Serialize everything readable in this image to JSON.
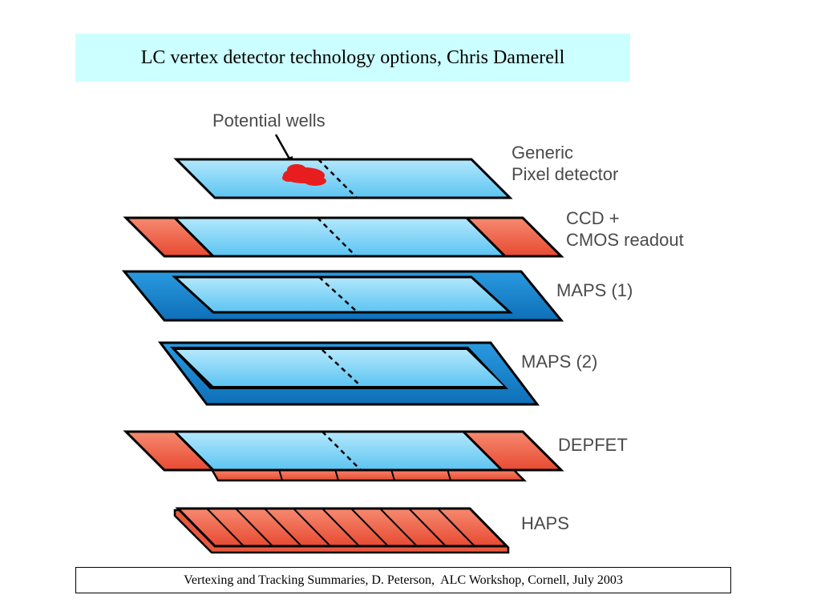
{
  "title": "LC vertex detector technology options, Chris Damerell",
  "callout": "Potential wells",
  "layers": [
    {
      "line1": "Generic",
      "line2": "Pixel detector"
    },
    {
      "line1": "CCD +",
      "line2": "CMOS readout"
    },
    {
      "line1": "MAPS (1)",
      "line2": ""
    },
    {
      "line1": "MAPS (2)",
      "line2": ""
    },
    {
      "line1": "DEPFET",
      "line2": ""
    },
    {
      "line1": "HAPS",
      "line2": ""
    }
  ],
  "footer": "Vertexing and Tracking Summaries, D. Peterson,  ALC Workshop, Cornell, July 2003",
  "colors": {
    "title_bg": "#ccffff",
    "sensor_blue": "#8fd8f8",
    "dark_blue": "#1a87d0",
    "readout_red": "#f06048",
    "label_gray": "#4a4a4a"
  }
}
